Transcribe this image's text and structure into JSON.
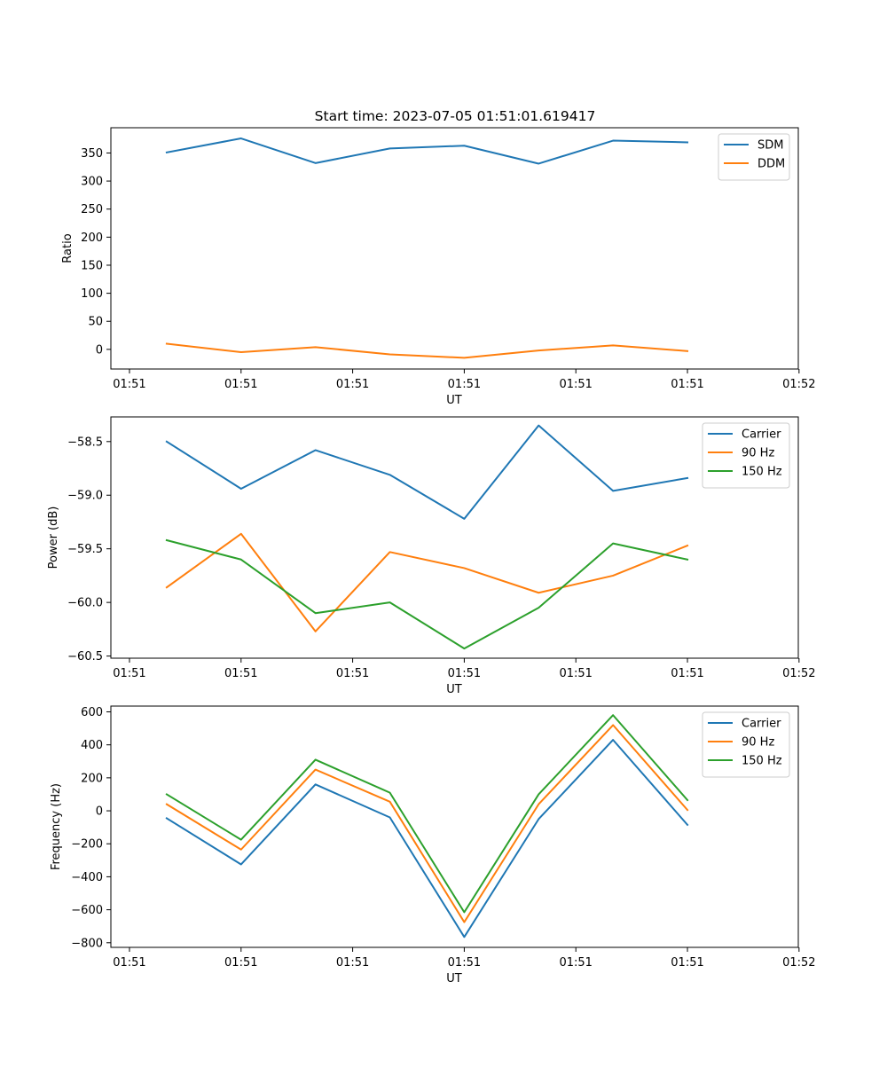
{
  "title": "Start time: 2023-07-05 01:51:01.619417",
  "chart_data": [
    {
      "type": "line",
      "title": "Start time: 2023-07-05 01:51:01.619417",
      "xlabel": "UT",
      "ylabel": "Ratio",
      "xlim": [
        -0.25,
        8.99
      ],
      "ylim": [
        -35,
        395
      ],
      "x": [
        0.5,
        1.5,
        2.5,
        3.5,
        4.5,
        5.5,
        6.5,
        7.5
      ],
      "xticks": [
        {
          "pos": 0,
          "label": "01:51"
        },
        {
          "pos": 1.5,
          "label": "01:51"
        },
        {
          "pos": 3,
          "label": "01:51"
        },
        {
          "pos": 4.5,
          "label": "01:51"
        },
        {
          "pos": 6,
          "label": "01:51"
        },
        {
          "pos": 7.5,
          "label": "01:51"
        },
        {
          "pos": 9,
          "label": "01:52"
        }
      ],
      "yticks": [
        0,
        50,
        100,
        150,
        200,
        250,
        300,
        350
      ],
      "legend_position": "top-right",
      "series": [
        {
          "name": "SDM",
          "color": "#1f77b4",
          "values": [
            351,
            376,
            332,
            358,
            363,
            331,
            372,
            369
          ]
        },
        {
          "name": "DDM",
          "color": "#ff7f0e",
          "values": [
            10,
            -5,
            4,
            -9,
            -15,
            -2,
            7,
            -3
          ]
        }
      ]
    },
    {
      "type": "line",
      "title": "",
      "xlabel": "UT",
      "ylabel": "Power (dB)",
      "xlim": [
        -0.25,
        8.99
      ],
      "ylim": [
        -60.52,
        -58.27
      ],
      "x": [
        0.5,
        1.5,
        2.5,
        3.5,
        4.5,
        5.5,
        6.5,
        7.5
      ],
      "xticks": [
        {
          "pos": 0,
          "label": "01:51"
        },
        {
          "pos": 1.5,
          "label": "01:51"
        },
        {
          "pos": 3,
          "label": "01:51"
        },
        {
          "pos": 4.5,
          "label": "01:51"
        },
        {
          "pos": 6,
          "label": "01:51"
        },
        {
          "pos": 7.5,
          "label": "01:51"
        },
        {
          "pos": 9,
          "label": "01:52"
        }
      ],
      "yticks": [
        -60.5,
        -60.0,
        -59.5,
        -59.0,
        -58.5
      ],
      "legend_position": "top-right",
      "series": [
        {
          "name": "Carrier",
          "color": "#1f77b4",
          "values": [
            -58.5,
            -58.94,
            -58.58,
            -58.81,
            -59.22,
            -58.35,
            -58.96,
            -58.84
          ]
        },
        {
          "name": "90 Hz",
          "color": "#ff7f0e",
          "values": [
            -59.86,
            -59.36,
            -60.27,
            -59.53,
            -59.68,
            -59.91,
            -59.75,
            -59.47
          ]
        },
        {
          "name": "150 Hz",
          "color": "#2ca02c",
          "values": [
            -59.42,
            -59.6,
            -60.1,
            -60.0,
            -60.43,
            -60.05,
            -59.45,
            -59.6
          ]
        }
      ]
    },
    {
      "type": "line",
      "title": "",
      "xlabel": "UT",
      "ylabel": "Frequency (Hz)",
      "xlim": [
        -0.25,
        8.99
      ],
      "ylim": [
        -828,
        635
      ],
      "x": [
        0.5,
        1.5,
        2.5,
        3.5,
        4.5,
        5.5,
        6.5,
        7.5
      ],
      "xticks": [
        {
          "pos": 0,
          "label": "01:51"
        },
        {
          "pos": 1.5,
          "label": "01:51"
        },
        {
          "pos": 3,
          "label": "01:51"
        },
        {
          "pos": 4.5,
          "label": "01:51"
        },
        {
          "pos": 6,
          "label": "01:51"
        },
        {
          "pos": 7.5,
          "label": "01:51"
        },
        {
          "pos": 9,
          "label": "01:52"
        }
      ],
      "yticks": [
        -800,
        -600,
        -400,
        -200,
        0,
        200,
        400,
        600
      ],
      "legend_position": "top-right",
      "series": [
        {
          "name": "Carrier",
          "color": "#1f77b4",
          "values": [
            -45,
            -325,
            160,
            -40,
            -765,
            -50,
            430,
            -85
          ]
        },
        {
          "name": "90 Hz",
          "color": "#ff7f0e",
          "values": [
            40,
            -235,
            250,
            55,
            -675,
            40,
            520,
            5
          ]
        },
        {
          "name": "150 Hz",
          "color": "#2ca02c",
          "values": [
            100,
            -175,
            310,
            110,
            -615,
            100,
            580,
            65
          ]
        }
      ]
    }
  ]
}
